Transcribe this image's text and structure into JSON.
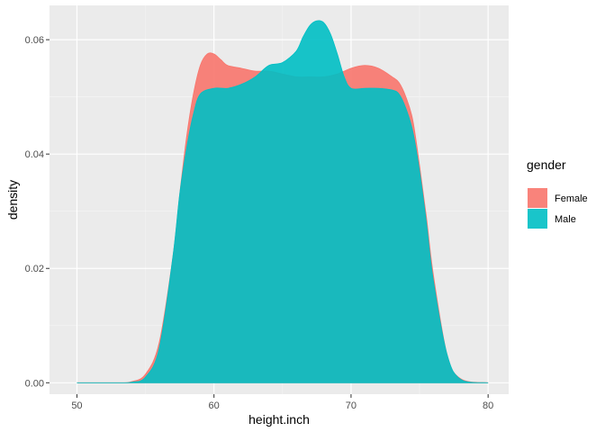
{
  "chart_data": {
    "type": "area",
    "subtype": "density",
    "xlabel": "height.inch",
    "ylabel": "density",
    "xlim": [
      48,
      81.5
    ],
    "ylim": [
      -0.002,
      0.066
    ],
    "xticks": [
      50,
      60,
      70,
      80
    ],
    "yticks": [
      0.0,
      0.02,
      0.04,
      0.06
    ],
    "ytick_labels": [
      "0.00",
      "0.02",
      "0.04",
      "0.06"
    ],
    "grid": true,
    "legend": {
      "title": "gender",
      "position": "right"
    },
    "series": [
      {
        "name": "Female",
        "color": "#F8766D",
        "x": [
          50,
          53,
          54,
          55,
          56,
          57,
          57.5,
          58,
          58.5,
          59,
          59.5,
          60,
          60.5,
          61,
          62,
          63,
          64,
          65,
          66,
          67,
          68,
          69,
          70,
          71,
          72,
          73,
          73.5,
          74,
          74.5,
          75,
          75.5,
          76,
          77,
          78,
          80
        ],
        "values": [
          0.0,
          0.0,
          0.0002,
          0.0015,
          0.007,
          0.022,
          0.033,
          0.043,
          0.0505,
          0.0555,
          0.0575,
          0.0575,
          0.0565,
          0.0555,
          0.055,
          0.0545,
          0.0545,
          0.054,
          0.0535,
          0.0535,
          0.0535,
          0.054,
          0.055,
          0.0555,
          0.055,
          0.0535,
          0.0525,
          0.05,
          0.046,
          0.038,
          0.029,
          0.019,
          0.005,
          0.0007,
          0.0
        ]
      },
      {
        "name": "Male",
        "color": "#00BFC4",
        "x": [
          50,
          53,
          54,
          55,
          56,
          57,
          57.5,
          58,
          58.5,
          59,
          60,
          61,
          62,
          63,
          64,
          65,
          66,
          66.5,
          67,
          67.5,
          68,
          68.5,
          69,
          69.5,
          70,
          71,
          72,
          73,
          73.5,
          74,
          74.5,
          75,
          75.5,
          76,
          77,
          78,
          80
        ],
        "values": [
          0.0,
          0.0,
          0.0001,
          0.001,
          0.006,
          0.022,
          0.033,
          0.041,
          0.047,
          0.0505,
          0.0515,
          0.0515,
          0.0522,
          0.0535,
          0.0555,
          0.056,
          0.058,
          0.0605,
          0.0625,
          0.0633,
          0.063,
          0.061,
          0.0575,
          0.0535,
          0.0515,
          0.0515,
          0.0515,
          0.0512,
          0.0505,
          0.048,
          0.044,
          0.037,
          0.028,
          0.018,
          0.005,
          0.0006,
          0.0
        ]
      }
    ]
  }
}
